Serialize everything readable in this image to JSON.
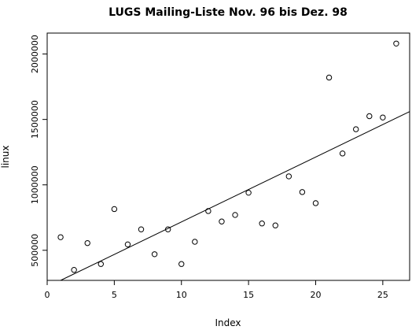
{
  "chart_data": {
    "type": "scatter",
    "title": "LUGS Mailing-Liste Nov. 96 bis Dez. 98",
    "xlabel": "Index",
    "ylabel": "linux",
    "xlim": [
      0,
      27
    ],
    "ylim": [
      270000,
      2160000
    ],
    "x_ticks": [
      0,
      5,
      10,
      15,
      20,
      25
    ],
    "x_tick_labels": [
      "0",
      "5",
      "10",
      "15",
      "20",
      "25"
    ],
    "y_ticks": [
      500000,
      1000000,
      1500000,
      2000000
    ],
    "y_tick_labels": [
      "500000",
      "1000000",
      "1500000",
      "2000000"
    ],
    "grid": false,
    "legend": "none",
    "series": [
      {
        "x": [
          1,
          2,
          3,
          4,
          5,
          6,
          7,
          8,
          9,
          10,
          11,
          12,
          13,
          14,
          15,
          16,
          17,
          18,
          19,
          20,
          21,
          22,
          23,
          24,
          25,
          26
        ],
        "values": [
          600000,
          350000,
          555000,
          395000,
          815000,
          545000,
          660000,
          470000,
          660000,
          395000,
          565000,
          800000,
          720000,
          770000,
          940000,
          705000,
          690000,
          1065000,
          945000,
          860000,
          1820000,
          1240000,
          1425000,
          1525000,
          1515000,
          2080000
        ]
      }
    ],
    "regression_line": {
      "x": [
        1,
        27
      ],
      "y": [
        270000,
        1560000
      ]
    },
    "colors": {
      "points": "#000000",
      "line": "#000000",
      "background": "#ffffff"
    }
  }
}
